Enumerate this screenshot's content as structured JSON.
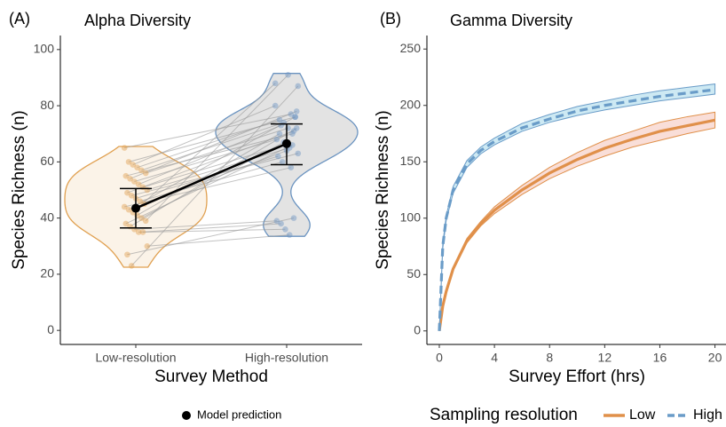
{
  "chart_data": [
    {
      "type": "violin",
      "panel": "(A)",
      "title": "Alpha Diversity",
      "xlabel": "Survey Method",
      "ylabel": "Species Richness (n)",
      "categories": [
        "Low-resolution",
        "High-resolution"
      ],
      "colors": [
        "#e0a050",
        "#6a93c0"
      ],
      "fills": [
        "#fbf3e8",
        "#e3e3e3"
      ],
      "values": [
        [
          65,
          60,
          59,
          58,
          57,
          56,
          55,
          54,
          53,
          52,
          51,
          50,
          49,
          48,
          47,
          46,
          45,
          44,
          43,
          42,
          41,
          40,
          39,
          38,
          37,
          36,
          35,
          35,
          30,
          27,
          23
        ],
        [
          77,
          76,
          80,
          75,
          74,
          72,
          70,
          78,
          68,
          73,
          66,
          65,
          71,
          63,
          62,
          60,
          64,
          58,
          76,
          88,
          70,
          67,
          91,
          66,
          72,
          39,
          38,
          36,
          34,
          40,
          87
        ]
      ],
      "model": {
        "name": "Model prediction",
        "values": [
          43.5,
          66.5
        ],
        "lower": [
          36.5,
          59
        ],
        "upper": [
          50.5,
          73.5
        ]
      },
      "ylim": [
        -5,
        105
      ],
      "yticks": [
        0,
        20,
        40,
        60,
        80,
        100
      ]
    },
    {
      "type": "line",
      "panel": "(B)",
      "title": "Gamma Diversity",
      "xlabel": "Survey Effort (hrs)",
      "ylabel": "Species Richness (n)",
      "x": [
        0,
        0.25,
        0.5,
        1,
        2,
        3,
        4,
        6,
        8,
        10,
        12,
        14,
        16,
        18,
        20
      ],
      "series": [
        {
          "name": "Low",
          "color": "#e0904a",
          "fill": "#f6d0c8",
          "dash": false,
          "values": [
            0,
            22,
            35,
            55,
            80,
            95,
            107,
            125,
            140,
            152,
            162,
            170,
            177,
            182,
            187
          ],
          "lower": [
            0,
            21,
            34,
            54,
            78,
            93,
            104,
            121,
            135,
            146,
            155,
            163,
            169,
            175,
            180
          ],
          "upper": [
            0,
            23,
            36,
            56,
            82,
            97,
            110,
            129,
            145,
            158,
            169,
            177,
            185,
            190,
            194
          ]
        },
        {
          "name": "High",
          "color": "#6a9cc8",
          "fill": "#b8e0ee",
          "dash": true,
          "values": [
            0,
            75,
            100,
            125,
            148,
            160,
            168,
            180,
            188,
            195,
            200,
            204,
            208,
            211,
            214
          ],
          "lower": [
            0,
            73,
            98,
            122,
            145,
            157,
            165,
            177,
            185,
            191,
            196,
            200,
            204,
            207,
            210
          ],
          "upper": [
            0,
            77,
            102,
            128,
            151,
            163,
            171,
            184,
            192,
            199,
            204,
            209,
            213,
            216,
            219
          ]
        }
      ],
      "legend_title": "Sampling resolution",
      "xlim": [
        -0.9,
        20.8
      ],
      "xticks": [
        0,
        4,
        8,
        12,
        16,
        20
      ],
      "ylim": [
        -12,
        262
      ],
      "yticks": [
        0,
        50,
        100,
        150,
        200,
        250
      ]
    }
  ]
}
